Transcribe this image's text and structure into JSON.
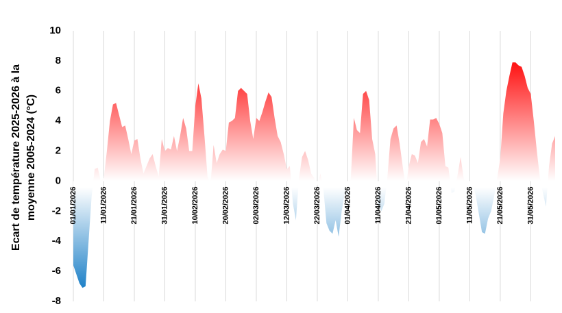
{
  "chart_data": {
    "type": "area",
    "ylabel": [
      "Ecart de température 2025-2026 à la",
      "moyenne 2005-2024 (°C)"
    ],
    "categories": [
      "01/01/2026",
      null,
      null,
      null,
      null,
      null,
      null,
      null,
      null,
      null,
      "11/01/2026",
      null,
      null,
      null,
      null,
      null,
      null,
      null,
      null,
      null,
      "21/01/2026",
      null,
      null,
      null,
      null,
      null,
      null,
      null,
      null,
      null,
      "31/01/2026",
      null,
      null,
      null,
      null,
      null,
      null,
      null,
      null,
      null,
      "10/02/2026",
      null,
      null,
      null,
      null,
      null,
      null,
      null,
      null,
      null,
      "20/02/2026",
      null,
      null,
      null,
      null,
      null,
      null,
      null,
      null,
      null,
      "02/03/2026",
      null,
      null,
      null,
      null,
      null,
      null,
      null,
      null,
      null,
      "12/03/2026",
      null,
      null,
      null,
      null,
      null,
      null,
      null,
      null,
      null,
      "22/03/2026",
      null,
      null,
      null,
      null,
      null,
      null,
      null,
      null,
      null,
      "01/04/2026",
      null,
      null,
      null,
      null,
      null,
      null,
      null,
      null,
      null,
      "11/04/2026",
      null,
      null,
      null,
      null,
      null,
      null,
      null,
      null,
      null,
      "21/04/2026",
      null,
      null,
      null,
      null,
      null,
      null,
      null,
      null,
      null,
      "01/05/2026",
      null,
      null,
      null,
      null,
      null,
      null,
      null,
      null,
      null,
      "11/05/2026",
      null,
      null,
      null,
      null,
      null,
      null,
      null,
      null,
      null,
      "21/05/2026",
      null,
      null,
      null,
      null,
      null,
      null,
      null,
      null,
      null,
      "31/05/2026",
      null,
      null,
      null,
      null,
      null,
      null,
      null,
      null
    ],
    "values": [
      -5.6,
      -6.2,
      -6.8,
      -7.1,
      -7.0,
      -4.0,
      -1.0,
      0.8,
      0.9,
      0.0,
      0.2,
      2.0,
      4.0,
      5.1,
      5.2,
      4.4,
      3.6,
      3.7,
      2.8,
      1.8,
      2.7,
      2.8,
      1.5,
      0.5,
      1.0,
      1.5,
      1.8,
      1.0,
      0.3,
      2.8,
      2.0,
      2.2,
      2.1,
      3.0,
      2.0,
      3.0,
      4.2,
      3.5,
      2.0,
      2.0,
      5.0,
      6.5,
      5.5,
      3.0,
      0.3,
      -0.2,
      2.4,
      1.2,
      1.8,
      2.1,
      2.0,
      3.9,
      4.0,
      4.2,
      6.0,
      6.2,
      6.0,
      5.8,
      4.0,
      2.8,
      4.2,
      4.0,
      4.6,
      5.3,
      5.9,
      5.6,
      4.2,
      3.0,
      2.6,
      1.8,
      0.8,
      1.0,
      -1.5,
      -2.6,
      0.2,
      1.6,
      2.0,
      1.4,
      0.5,
      0.2,
      -0.3,
      0.5,
      -0.5,
      -2.8,
      -3.3,
      -3.5,
      -2.6,
      -3.7,
      -2.0,
      -0.8,
      -1.0,
      0.2,
      4.2,
      3.4,
      3.2,
      5.8,
      6.0,
      5.4,
      2.8,
      1.8,
      -1.5,
      -2.0,
      -1.5,
      0.3,
      2.8,
      3.5,
      3.7,
      2.5,
      1.0,
      -0.5,
      1.0,
      1.8,
      1.7,
      1.2,
      2.6,
      2.8,
      2.3,
      4.1,
      4.1,
      4.2,
      3.8,
      3.2,
      1.0,
      0.9,
      -0.8,
      -0.7,
      0.4,
      1.6,
      0.2,
      -0.4,
      -0.5,
      -0.2,
      -1.0,
      -2.2,
      -3.4,
      -3.5,
      -2.5,
      -2.0,
      -1.0,
      0.2,
      1.5,
      4.5,
      6.0,
      7.0,
      7.9,
      7.9,
      7.7,
      7.6,
      7.0,
      6.2,
      5.8,
      4.0,
      2.0,
      0.2,
      -0.8,
      -1.7,
      1.0,
      2.5,
      3.0
    ],
    "color": "#ff0000",
    "negative_color": "#0070c0",
    "ylim": [
      -8,
      10
    ],
    "yticks": [
      -8,
      -6,
      -4,
      -2,
      0,
      2,
      4,
      6,
      8,
      10
    ],
    "grid": true
  }
}
